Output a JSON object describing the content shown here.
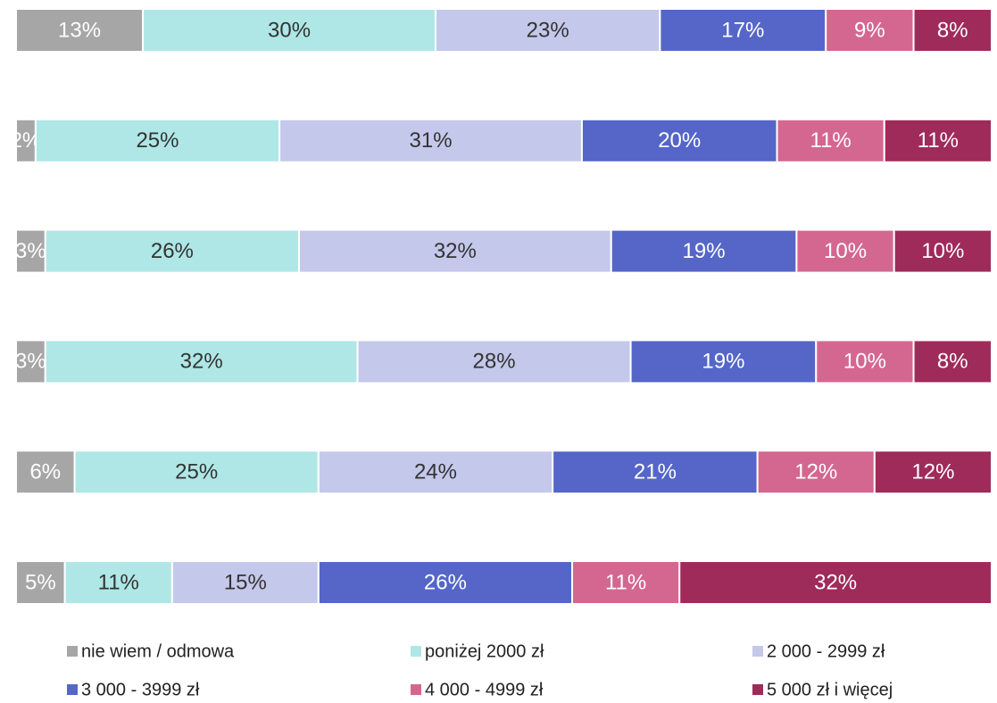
{
  "chart_data": {
    "type": "stacked-bar-horizontal",
    "categories": [
      null,
      null,
      null,
      null,
      null,
      null
    ],
    "xlim": [
      0,
      100
    ],
    "series": [
      {
        "name": "nie wiem / odmowa",
        "color": "#a6a6a6",
        "values": [
          13,
          2,
          3,
          3,
          6,
          5
        ],
        "value_labels": [
          "13%",
          "2%",
          "3%",
          "3%",
          "6%",
          "5%"
        ]
      },
      {
        "name": "poniżej 2000 zł",
        "color": "#aee7e6",
        "values": [
          30,
          25,
          26,
          32,
          25,
          11
        ],
        "value_labels": [
          "30%",
          "25%",
          "26%",
          "32%",
          "25%",
          "11%"
        ]
      },
      {
        "name": "2 000 - 2999 zł",
        "color": "#c4c8ea",
        "values": [
          23,
          31,
          32,
          28,
          24,
          15
        ],
        "value_labels": [
          "23%",
          "31%",
          "32%",
          "28%",
          "24%",
          "15%"
        ]
      },
      {
        "name": "3 000 - 3999 zł",
        "color": "#5566c8",
        "values": [
          17,
          20,
          19,
          19,
          21,
          26
        ],
        "value_labels": [
          "17%",
          "20%",
          "19%",
          "19%",
          "21%",
          "26%"
        ]
      },
      {
        "name": "4 000 - 4999 zł",
        "color": "#d4678f",
        "values": [
          9,
          11,
          10,
          10,
          12,
          11
        ],
        "value_labels": [
          "9%",
          "11%",
          "10%",
          "10%",
          "12%",
          "11%"
        ]
      },
      {
        "name": "5 000 zł i więcej",
        "color": "#9e2b5a",
        "values": [
          8,
          11,
          10,
          8,
          12,
          32
        ],
        "value_labels": [
          "8%",
          "11%",
          "10%",
          "8%",
          "12%",
          "32%"
        ]
      }
    ],
    "legend": "bottom"
  }
}
